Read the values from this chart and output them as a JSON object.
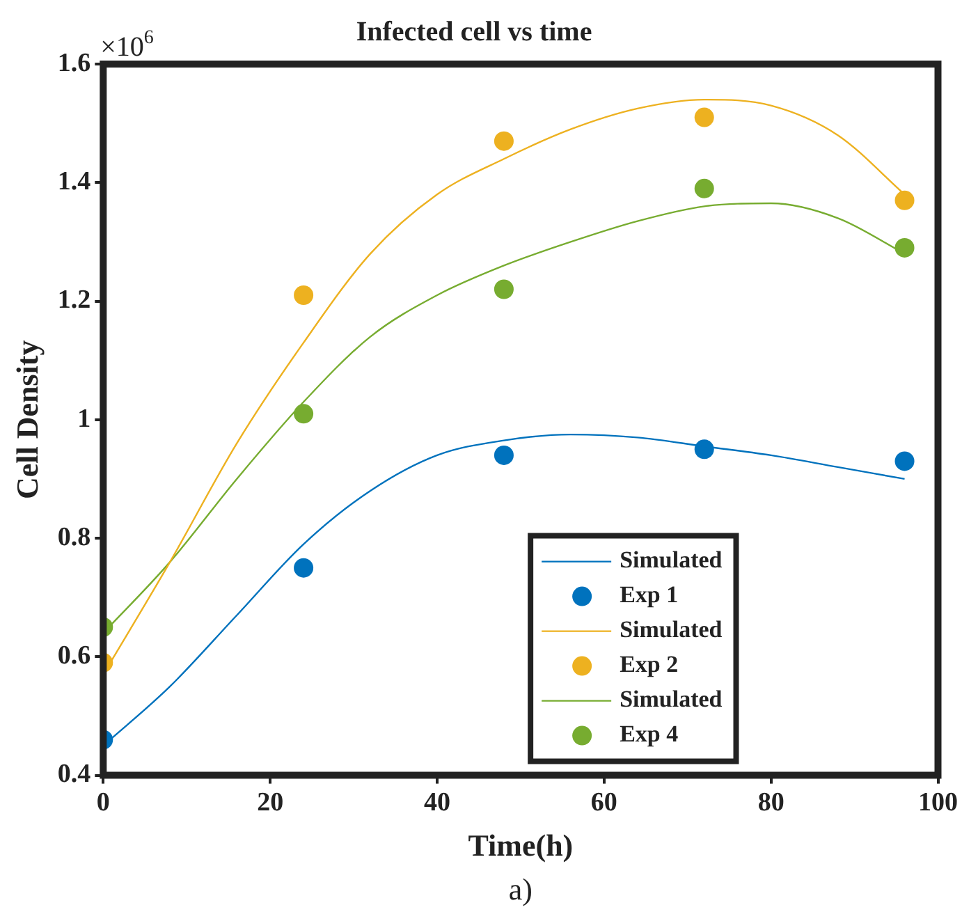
{
  "chart_data": {
    "type": "scatter",
    "title": "Infected cell vs time",
    "xlabel": "Time(h)",
    "ylabel": "Cell Density",
    "annotations": [
      "×10$^{6}$",
      "a)"
    ],
    "xlim": [
      0,
      100
    ],
    "xticks": [
      0,
      20,
      40,
      60,
      80,
      100
    ],
    "ylim": [
      0.4,
      1.6
    ],
    "yticks": [
      0.4,
      0.6,
      0.8,
      1,
      1.2,
      1.4,
      1.6
    ],
    "grid": false,
    "legend": "bottom right",
    "marker": "circle",
    "series": [
      {
        "name": "Simulated",
        "type": "line",
        "marker": "none",
        "color": "#0072bd",
        "x": [
          0,
          8,
          16,
          24,
          32,
          40,
          48,
          56,
          64,
          72,
          80,
          88,
          96
        ],
        "values": [
          0.45,
          0.55,
          0.67,
          0.79,
          0.88,
          0.94,
          0.965,
          0.975,
          0.97,
          0.955,
          0.94,
          0.92,
          0.9
        ]
      },
      {
        "name": "Exp 1",
        "type": "scatter",
        "color": "#0072bd",
        "x": [
          0,
          24,
          48,
          72,
          96
        ],
        "values": [
          0.46,
          0.75,
          0.94,
          0.95,
          0.93
        ]
      },
      {
        "name": "Simulated",
        "type": "line",
        "marker": "none",
        "color": "#edb120",
        "x": [
          0,
          8,
          16,
          24,
          32,
          40,
          48,
          56,
          64,
          72,
          80,
          88,
          96
        ],
        "values": [
          0.57,
          0.76,
          0.96,
          1.13,
          1.28,
          1.38,
          1.44,
          1.49,
          1.525,
          1.54,
          1.53,
          1.48,
          1.38
        ]
      },
      {
        "name": "Exp 2",
        "type": "scatter",
        "color": "#edb120",
        "x": [
          0,
          24,
          48,
          72,
          96
        ],
        "values": [
          0.59,
          1.21,
          1.47,
          1.51,
          1.37
        ]
      },
      {
        "name": "Simulated",
        "type": "line",
        "marker": "none",
        "color": "#77ac30",
        "x": [
          0,
          8,
          16,
          24,
          32,
          40,
          48,
          56,
          64,
          72,
          80,
          88,
          96
        ],
        "values": [
          0.64,
          0.76,
          0.9,
          1.03,
          1.14,
          1.21,
          1.26,
          1.3,
          1.335,
          1.36,
          1.365,
          1.34,
          1.28
        ]
      },
      {
        "name": "Exp 4",
        "type": "scatter",
        "color": "#77ac30",
        "x": [
          0,
          24,
          48,
          72,
          96
        ],
        "values": [
          0.65,
          1.01,
          1.22,
          1.39,
          1.29
        ]
      }
    ]
  }
}
